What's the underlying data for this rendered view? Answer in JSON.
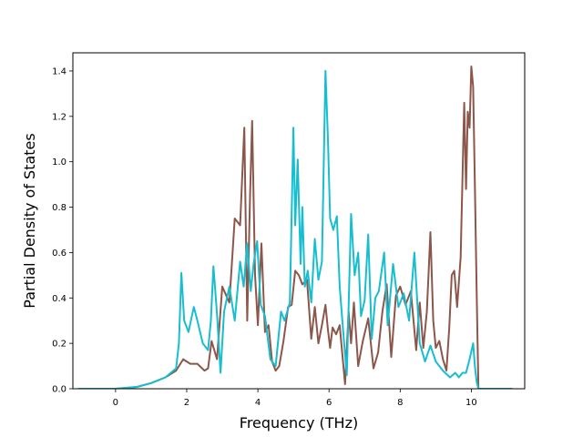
{
  "chart_data": {
    "type": "line",
    "title": "",
    "xlabel": "Frequency (THz)",
    "ylabel": "Partial Density of States",
    "xlim": [
      -1.2,
      11.5
    ],
    "ylim": [
      0.0,
      1.48
    ],
    "xticks": [
      0,
      2,
      4,
      6,
      8,
      10
    ],
    "xtick_labels": [
      "0",
      "2",
      "4",
      "6",
      "8",
      "10"
    ],
    "yticks": [
      0.0,
      0.2,
      0.4,
      0.6,
      0.8,
      1.0,
      1.2,
      1.4
    ],
    "ytick_labels": [
      "0.0",
      "0.2",
      "0.4",
      "0.6",
      "0.8",
      "1.0",
      "1.2",
      "1.4"
    ],
    "grid": false,
    "legend": false,
    "series": [
      {
        "color": "#8c564b",
        "x": [
          -1.05,
          0.0,
          0.6,
          1.0,
          1.4,
          1.7,
          1.9,
          2.1,
          2.3,
          2.5,
          2.6,
          2.7,
          2.85,
          3.0,
          3.2,
          3.35,
          3.5,
          3.62,
          3.7,
          3.78,
          3.84,
          3.92,
          4.0,
          4.1,
          4.2,
          4.3,
          4.4,
          4.5,
          4.6,
          4.72,
          4.85,
          4.95,
          5.05,
          5.15,
          5.25,
          5.38,
          5.5,
          5.6,
          5.7,
          5.8,
          5.9,
          5.97,
          6.03,
          6.1,
          6.2,
          6.3,
          6.45,
          6.55,
          6.62,
          6.7,
          6.82,
          6.95,
          7.1,
          7.25,
          7.38,
          7.5,
          7.62,
          7.75,
          7.88,
          8.0,
          8.15,
          8.3,
          8.45,
          8.55,
          8.65,
          8.75,
          8.85,
          8.93,
          9.0,
          9.1,
          9.2,
          9.3,
          9.38,
          9.45,
          9.52,
          9.6,
          9.7,
          9.8,
          9.85,
          9.9,
          9.95,
          10.0,
          10.05,
          10.1,
          10.15,
          10.2,
          10.3,
          11.15
        ],
        "y": [
          0.0,
          0.0,
          0.008,
          0.025,
          0.05,
          0.08,
          0.13,
          0.11,
          0.11,
          0.08,
          0.09,
          0.21,
          0.13,
          0.45,
          0.38,
          0.75,
          0.72,
          1.15,
          0.3,
          0.85,
          1.18,
          0.5,
          0.28,
          0.64,
          0.25,
          0.28,
          0.12,
          0.08,
          0.1,
          0.21,
          0.36,
          0.37,
          0.52,
          0.5,
          0.46,
          0.48,
          0.22,
          0.36,
          0.2,
          0.28,
          0.37,
          0.26,
          0.18,
          0.27,
          0.24,
          0.28,
          0.02,
          0.34,
          0.2,
          0.38,
          0.1,
          0.21,
          0.31,
          0.09,
          0.16,
          0.34,
          0.46,
          0.14,
          0.41,
          0.45,
          0.37,
          0.43,
          0.17,
          0.38,
          0.18,
          0.34,
          0.69,
          0.3,
          0.18,
          0.21,
          0.13,
          0.08,
          0.27,
          0.5,
          0.52,
          0.36,
          0.58,
          1.26,
          0.88,
          1.22,
          1.15,
          1.42,
          1.33,
          0.9,
          0.42,
          0.0,
          0.0,
          0.0
        ]
      },
      {
        "color": "#17becf",
        "x": [
          -1.05,
          0.0,
          0.6,
          1.0,
          1.4,
          1.7,
          1.78,
          1.85,
          1.93,
          2.05,
          2.2,
          2.3,
          2.45,
          2.6,
          2.68,
          2.75,
          2.85,
          2.95,
          3.05,
          3.2,
          3.35,
          3.5,
          3.6,
          3.7,
          3.8,
          3.88,
          3.98,
          4.08,
          4.2,
          4.35,
          4.5,
          4.65,
          4.75,
          4.9,
          5.0,
          5.05,
          5.12,
          5.2,
          5.25,
          5.32,
          5.4,
          5.5,
          5.6,
          5.7,
          5.8,
          5.9,
          5.97,
          6.03,
          6.12,
          6.22,
          6.3,
          6.4,
          6.5,
          6.62,
          6.72,
          6.82,
          6.9,
          7.0,
          7.1,
          7.2,
          7.3,
          7.4,
          7.55,
          7.65,
          7.8,
          7.95,
          8.1,
          8.25,
          8.4,
          8.55,
          8.7,
          8.85,
          9.0,
          9.2,
          9.4,
          9.55,
          9.65,
          9.75,
          9.85,
          9.95,
          10.05,
          10.1,
          10.15,
          10.2,
          10.3,
          11.15
        ],
        "y": [
          0.0,
          0.0,
          0.008,
          0.025,
          0.05,
          0.09,
          0.2,
          0.51,
          0.3,
          0.25,
          0.36,
          0.3,
          0.2,
          0.17,
          0.3,
          0.54,
          0.33,
          0.07,
          0.34,
          0.45,
          0.3,
          0.56,
          0.45,
          0.64,
          0.43,
          0.55,
          0.65,
          0.37,
          0.32,
          0.13,
          0.1,
          0.34,
          0.3,
          0.38,
          1.15,
          0.72,
          1.01,
          0.55,
          0.8,
          0.45,
          0.52,
          0.38,
          0.66,
          0.48,
          0.56,
          1.4,
          1.1,
          0.75,
          0.7,
          0.76,
          0.45,
          0.25,
          0.06,
          0.77,
          0.5,
          0.6,
          0.32,
          0.39,
          0.68,
          0.22,
          0.4,
          0.43,
          0.6,
          0.28,
          0.55,
          0.36,
          0.42,
          0.3,
          0.6,
          0.2,
          0.12,
          0.19,
          0.12,
          0.08,
          0.05,
          0.07,
          0.05,
          0.07,
          0.07,
          0.13,
          0.2,
          0.1,
          0.03,
          0.0,
          0.0,
          0.0
        ]
      }
    ]
  }
}
